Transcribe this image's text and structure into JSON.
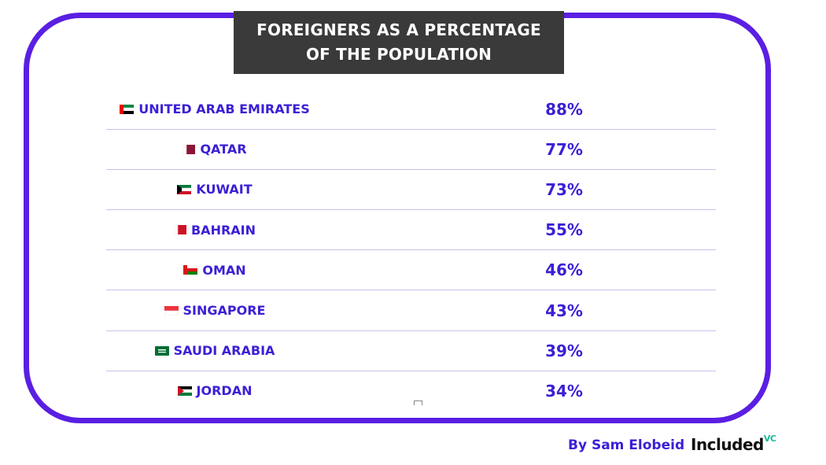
{
  "header": {
    "title_lines": [
      "FOREIGNERS AS A PERCENTAGE",
      "OF THE POPULATION"
    ]
  },
  "table": {
    "rows": [
      [
        "UNITED ARAB EMIRATES",
        "88%"
      ],
      [
        "QATAR",
        "77%"
      ],
      [
        "KUWAIT",
        "73%"
      ],
      [
        "BAHRAIN",
        "55%"
      ],
      [
        "OMAN",
        "46%"
      ],
      [
        "SINGAPORE",
        "43%"
      ],
      [
        "SAUDI ARABIA",
        "39%"
      ],
      [
        "JORDAN",
        "34%"
      ]
    ]
  },
  "footer": {
    "byline": "By Sam Elobeid",
    "logo": "Included",
    "logo_sup": "VC"
  }
}
